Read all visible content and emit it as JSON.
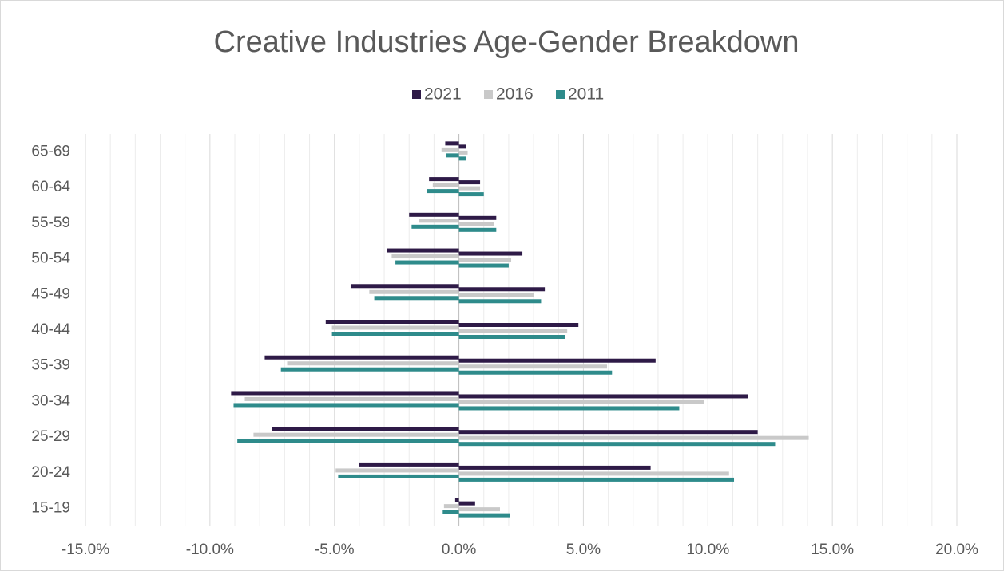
{
  "chart_data": {
    "type": "pyramid",
    "title": "Creative Industries Age-Gender Breakdown",
    "categories": [
      "65-69",
      "60-64",
      "55-59",
      "50-54",
      "45-49",
      "40-44",
      "35-39",
      "30-34",
      "25-29",
      "20-24",
      "15-19"
    ],
    "series": [
      {
        "name": "2021",
        "color": "#2e1a47",
        "left": [
          -0.55,
          -1.2,
          -2.0,
          -2.9,
          -4.35,
          -5.35,
          -7.8,
          -9.15,
          -7.5,
          -4.0,
          -0.15
        ],
        "right": [
          0.3,
          0.85,
          1.5,
          2.55,
          3.45,
          4.8,
          7.9,
          11.6,
          12.0,
          7.7,
          0.65
        ]
      },
      {
        "name": "2016",
        "color": "#c9c9c9",
        "left": [
          -0.7,
          -1.05,
          -1.6,
          -2.7,
          -3.6,
          -5.1,
          -6.9,
          -8.6,
          -8.25,
          -4.95,
          -0.6
        ],
        "right": [
          0.35,
          0.85,
          1.4,
          2.1,
          3.0,
          4.35,
          5.95,
          9.85,
          14.05,
          10.85,
          1.65
        ]
      },
      {
        "name": "2011",
        "color": "#2e8b8b",
        "left": [
          -0.5,
          -1.3,
          -1.9,
          -2.55,
          -3.4,
          -5.1,
          -7.15,
          -9.05,
          -8.9,
          -4.85,
          -0.65
        ],
        "right": [
          0.3,
          1.0,
          1.5,
          2.0,
          3.3,
          4.25,
          6.15,
          8.85,
          12.7,
          11.05,
          2.05
        ]
      }
    ],
    "xlim": [
      -15,
      20
    ],
    "xticks": [
      {
        "value": -15,
        "label": "-15.0%"
      },
      {
        "value": -10,
        "label": "-10.0%"
      },
      {
        "value": -5,
        "label": "-5.0%"
      },
      {
        "value": 0,
        "label": "0.0%"
      },
      {
        "value": 5,
        "label": "5.0%"
      },
      {
        "value": 10,
        "label": "10.0%"
      },
      {
        "value": 15,
        "label": "15.0%"
      },
      {
        "value": 20,
        "label": "20.0%"
      }
    ],
    "grid": true,
    "legend": "top"
  }
}
